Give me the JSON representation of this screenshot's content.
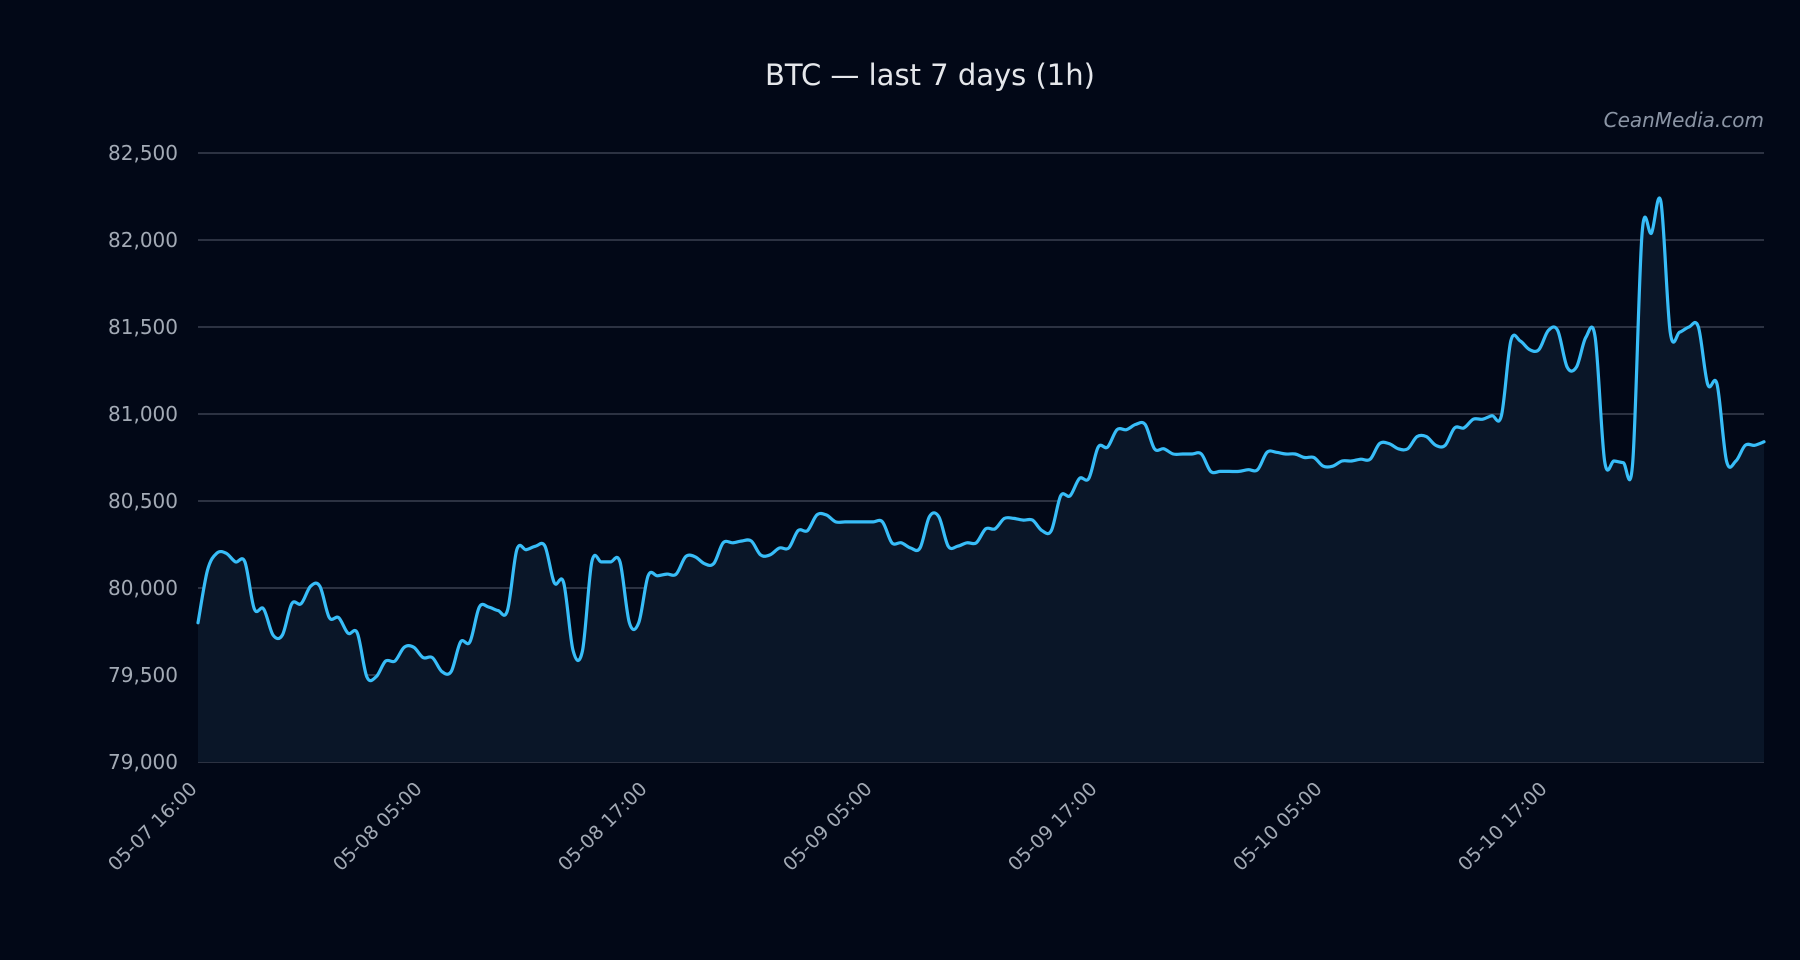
{
  "chart_data": {
    "type": "area",
    "title": "BTC — last 7 days (1h)",
    "watermark": "CeanMedia.com",
    "ylim": [
      79000,
      82500
    ],
    "yticks": [
      79000,
      79500,
      80000,
      80500,
      81000,
      81500,
      82000,
      82500
    ],
    "ytick_labels": [
      "79,000",
      "79,500",
      "80,000",
      "80,500",
      "81,000",
      "81,500",
      "82,000",
      "82,500"
    ],
    "xticks": [
      "05-07 16:00",
      "05-08 05:00",
      "05-08 17:00",
      "05-09 05:00",
      "05-09 17:00",
      "05-10 05:00",
      "05-10 17:00"
    ],
    "grid": "horizontal",
    "line_color": "#38bdf8",
    "fill_color": "#0a1628",
    "background": "#020817",
    "series": [
      {
        "values": [
          79800,
          80100,
          80200,
          80200,
          80150,
          80150,
          79880,
          79880,
          79730,
          79730,
          79910,
          79910,
          80010,
          80010,
          79830,
          79830,
          79740,
          79740,
          79490,
          79490,
          79580,
          79580,
          79660,
          79660,
          79600,
          79600,
          79520,
          79520,
          79690,
          79690,
          79890,
          79890,
          79870,
          79870,
          80220,
          80220,
          80240,
          80240,
          80030,
          80030,
          79640,
          79640,
          80150,
          80150,
          80150,
          80150,
          79800,
          79800,
          80070,
          80070,
          80080,
          80080,
          80180,
          80180,
          80140,
          80140,
          80260,
          80260,
          80270,
          80270,
          80190,
          80190,
          80230,
          80230,
          80330,
          80330,
          80420,
          80420,
          80380,
          80380,
          80380,
          80380,
          80380,
          80380,
          80260,
          80260,
          80230,
          80230,
          80410,
          80410,
          80240,
          80240,
          80260,
          80260,
          80340,
          80340,
          80400,
          80400,
          80390,
          80390,
          80330,
          80330,
          80530,
          80530,
          80630,
          80630,
          80810,
          80810,
          80910,
          80910,
          80940,
          80940,
          80800,
          80800,
          80770,
          80770,
          80770,
          80770,
          80670,
          80670,
          80670,
          80670,
          80680,
          80680,
          80780,
          80780,
          80770,
          80770,
          80750,
          80750,
          80700,
          80700,
          80730,
          80730,
          80740,
          80740,
          80830,
          80830,
          80800,
          80800,
          80870,
          80870,
          80820,
          80820,
          80920,
          80920,
          80970,
          80970,
          80990,
          80990,
          81420,
          81420,
          81370,
          81370,
          81480,
          81480,
          81270,
          81270,
          81440,
          81440,
          80730,
          80730,
          80720,
          80720,
          82040,
          82040,
          82220,
          81470,
          81470,
          81500,
          81500,
          81170,
          81170,
          80730,
          80730,
          80820,
          80820,
          80840
        ]
      }
    ]
  }
}
